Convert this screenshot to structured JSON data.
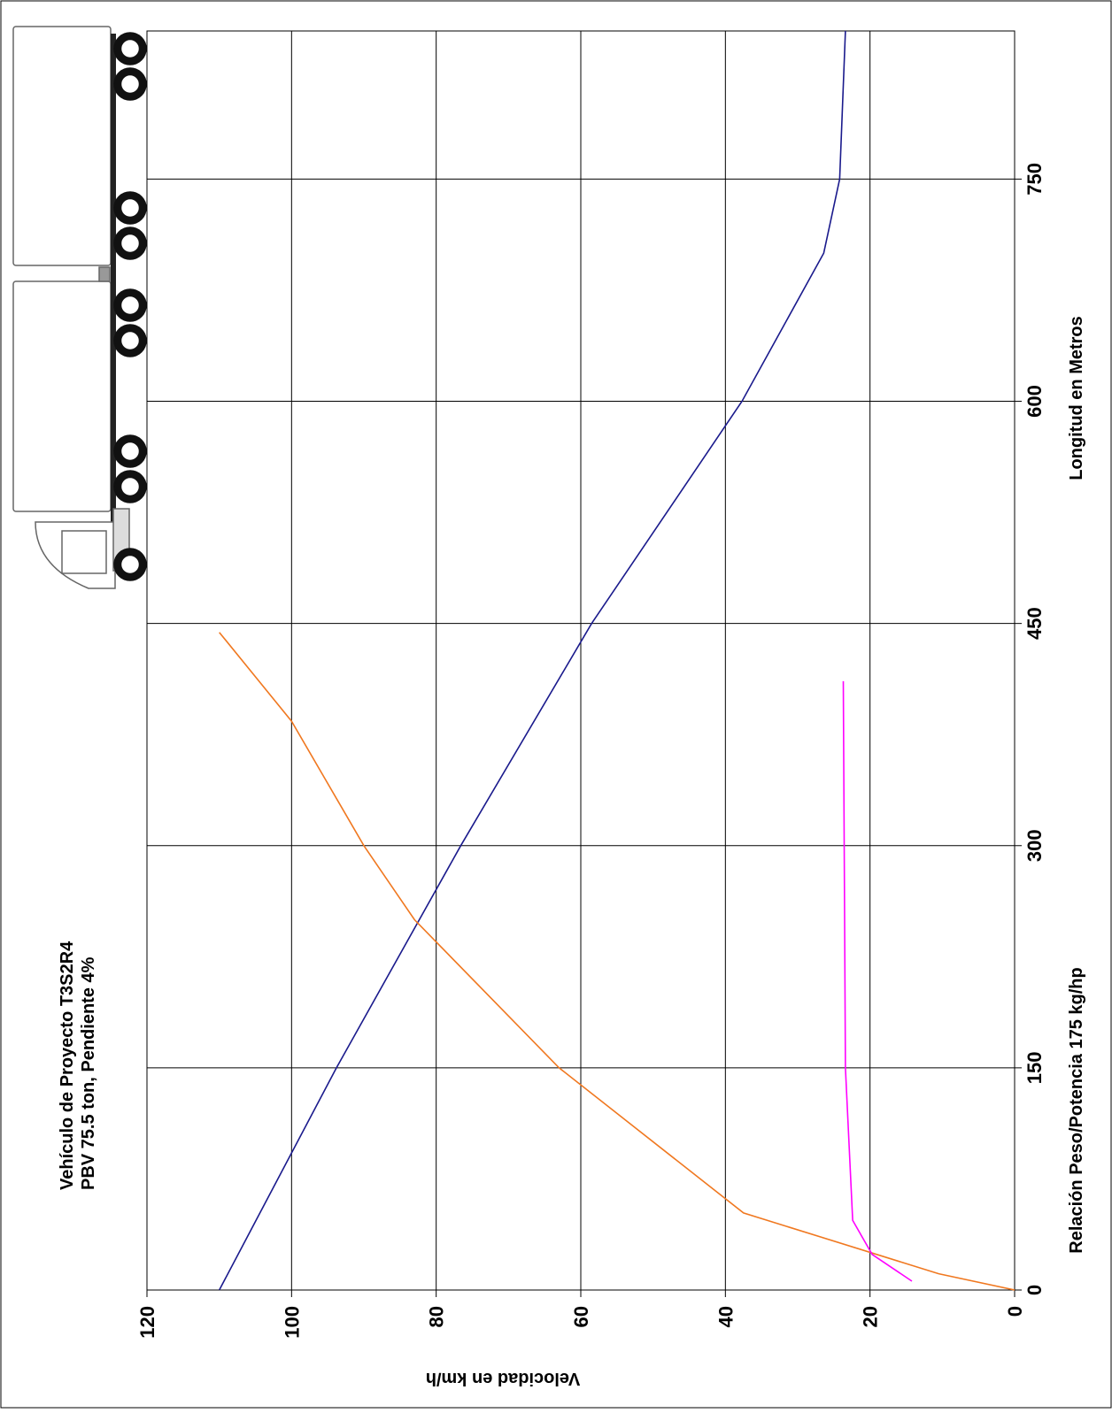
{
  "chart_data": {
    "type": "line",
    "title": [
      "Vehículo de Proyecto T3S2R4",
      "PBV 75.5 ton, Pendiente  4%"
    ],
    "x_label": "Longitud en Metros",
    "x_label_2": "Relación Peso/Potencia 175 kg/hp",
    "y_label": "Velocidad en km/h",
    "xlim": [
      0,
      850
    ],
    "xticks": [
      0,
      150,
      300,
      450,
      600,
      750
    ],
    "ylim": [
      0,
      120
    ],
    "yticks": [
      0,
      20,
      40,
      60,
      80,
      100,
      120
    ],
    "grid": true,
    "series": [
      {
        "color": "#1a1a8c",
        "x": [
          0,
          150,
          300,
          450,
          600,
          700,
          750,
          850
        ],
        "values": [
          110,
          93.8,
          76.6,
          58.5,
          37.7,
          26.4,
          24.2,
          23.4
        ]
      },
      {
        "color": "#f07820",
        "x": [
          0,
          11,
          52,
          150,
          250,
          300,
          384,
          444
        ],
        "values": [
          0,
          10.5,
          37.5,
          63,
          83,
          90,
          100,
          110
        ]
      },
      {
        "color": "#ff00ff",
        "x": [
          6,
          24,
          47,
          150,
          411
        ],
        "values": [
          14.2,
          19.7,
          22.4,
          23.4,
          23.7
        ]
      }
    ]
  }
}
